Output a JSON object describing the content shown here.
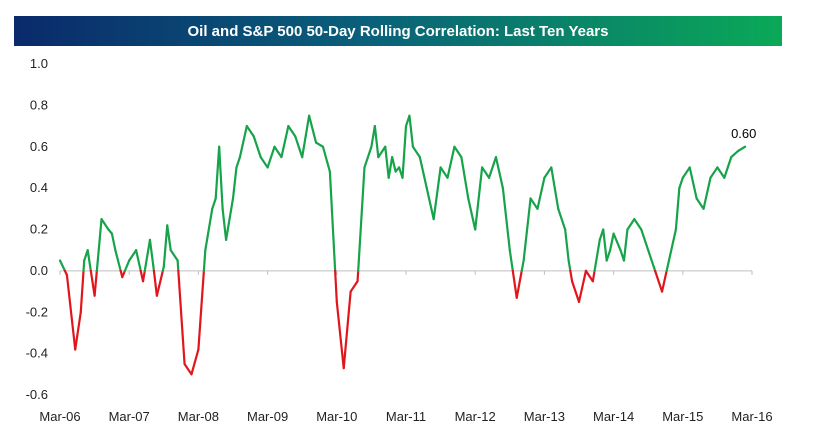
{
  "chart_data": {
    "type": "line",
    "title": "Oil and S&P 500 50-Day Rolling Correlation: Last Ten Years",
    "xlabel": "",
    "ylabel": "",
    "ylim": [
      -0.6,
      1.0
    ],
    "y_ticks": [
      -0.6,
      -0.4,
      -0.2,
      0.0,
      0.2,
      0.4,
      0.6,
      0.8,
      1.0
    ],
    "y_tick_labels": [
      "-0.6",
      "-0.4",
      "-0.2",
      "0.0",
      "0.2",
      "0.4",
      "0.6",
      "0.8",
      "1.0"
    ],
    "x_range": [
      2006.2,
      2016.2
    ],
    "x_ticks": [
      2006.2,
      2007.2,
      2008.2,
      2009.2,
      2010.2,
      2011.2,
      2012.2,
      2013.2,
      2014.2,
      2015.2,
      2016.2
    ],
    "x_tick_labels": [
      "Mar-06",
      "Mar-07",
      "Mar-08",
      "Mar-09",
      "Mar-10",
      "Mar-11",
      "Mar-12",
      "Mar-13",
      "Mar-14",
      "Mar-15",
      "Mar-16"
    ],
    "grid": false,
    "colors": {
      "positive": "#16a34a",
      "negative": "#e0161c",
      "axis": "#bfbfbf"
    },
    "annotation": {
      "label": "0.60",
      "x": 2016.1,
      "y": 0.6
    },
    "x": [
      2006.2,
      2006.3,
      2006.42,
      2006.5,
      2006.55,
      2006.6,
      2006.7,
      2006.8,
      2006.9,
      2006.95,
      2007.0,
      2007.1,
      2007.2,
      2007.3,
      2007.4,
      2007.5,
      2007.55,
      2007.6,
      2007.7,
      2007.75,
      2007.8,
      2007.9,
      2008.0,
      2008.1,
      2008.2,
      2008.3,
      2008.4,
      2008.45,
      2008.5,
      2008.55,
      2008.6,
      2008.7,
      2008.75,
      2008.8,
      2008.9,
      2009.0,
      2009.1,
      2009.2,
      2009.3,
      2009.4,
      2009.5,
      2009.6,
      2009.7,
      2009.8,
      2009.9,
      2010.0,
      2010.1,
      2010.2,
      2010.3,
      2010.4,
      2010.5,
      2010.6,
      2010.7,
      2010.75,
      2010.8,
      2010.9,
      2010.95,
      2011.0,
      2011.05,
      2011.1,
      2011.15,
      2011.2,
      2011.25,
      2011.3,
      2011.4,
      2011.5,
      2011.6,
      2011.7,
      2011.8,
      2011.9,
      2012.0,
      2012.1,
      2012.2,
      2012.3,
      2012.4,
      2012.5,
      2012.6,
      2012.7,
      2012.8,
      2012.9,
      2013.0,
      2013.1,
      2013.2,
      2013.3,
      2013.4,
      2013.5,
      2013.55,
      2013.6,
      2013.7,
      2013.8,
      2013.9,
      2014.0,
      2014.05,
      2014.1,
      2014.15,
      2014.2,
      2014.3,
      2014.35,
      2014.4,
      2014.5,
      2014.6,
      2014.7,
      2014.8,
      2014.9,
      2015.0,
      2015.1,
      2015.15,
      2015.2,
      2015.3,
      2015.4,
      2015.5,
      2015.6,
      2015.7,
      2015.8,
      2015.9,
      2016.0,
      2016.1
    ],
    "values": [
      0.05,
      -0.02,
      -0.38,
      -0.2,
      0.05,
      0.1,
      -0.12,
      0.25,
      0.2,
      0.18,
      0.1,
      -0.03,
      0.05,
      0.1,
      -0.05,
      0.15,
      0.02,
      -0.12,
      0.02,
      0.22,
      0.1,
      0.05,
      -0.45,
      -0.5,
      -0.38,
      0.1,
      0.3,
      0.35,
      0.6,
      0.3,
      0.15,
      0.35,
      0.5,
      0.55,
      0.7,
      0.65,
      0.55,
      0.5,
      0.6,
      0.55,
      0.7,
      0.65,
      0.55,
      0.75,
      0.62,
      0.6,
      0.48,
      -0.15,
      -0.47,
      -0.1,
      -0.05,
      0.5,
      0.6,
      0.7,
      0.55,
      0.6,
      0.45,
      0.55,
      0.48,
      0.5,
      0.45,
      0.7,
      0.75,
      0.6,
      0.55,
      0.4,
      0.25,
      0.5,
      0.45,
      0.6,
      0.55,
      0.35,
      0.2,
      0.5,
      0.45,
      0.55,
      0.4,
      0.1,
      -0.13,
      0.05,
      0.35,
      0.3,
      0.45,
      0.5,
      0.3,
      0.2,
      0.05,
      -0.05,
      -0.15,
      0.0,
      -0.05,
      0.15,
      0.2,
      0.05,
      0.1,
      0.18,
      0.1,
      0.05,
      0.2,
      0.25,
      0.2,
      0.1,
      0.0,
      -0.1,
      0.05,
      0.2,
      0.4,
      0.45,
      0.5,
      0.35,
      0.3,
      0.45,
      0.5,
      0.45,
      0.55,
      0.58,
      0.6
    ]
  }
}
